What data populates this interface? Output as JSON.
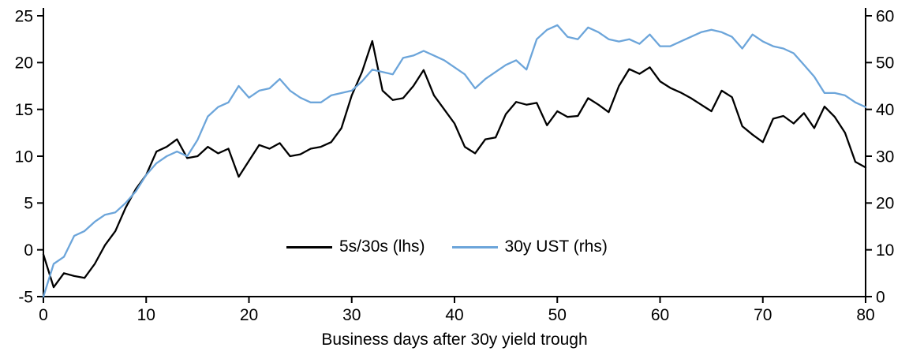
{
  "chart_data": {
    "type": "line",
    "xlabel": "Business days after 30y yield trough",
    "x_ticks": [
      0,
      10,
      20,
      30,
      40,
      50,
      60,
      70,
      80
    ],
    "left_axis": {
      "min": -5,
      "max": 25,
      "ticks": [
        -5,
        0,
        5,
        10,
        15,
        20,
        25
      ]
    },
    "right_axis": {
      "min": 0,
      "max": 60,
      "ticks": [
        0,
        10,
        20,
        30,
        40,
        50,
        60
      ]
    },
    "grid": false,
    "legend_position": "inside-center-bottom",
    "x": [
      0,
      1,
      2,
      3,
      4,
      5,
      6,
      7,
      8,
      9,
      10,
      11,
      12,
      13,
      14,
      15,
      16,
      17,
      18,
      19,
      20,
      21,
      22,
      23,
      24,
      25,
      26,
      27,
      28,
      29,
      30,
      31,
      32,
      33,
      34,
      35,
      36,
      37,
      38,
      39,
      40,
      41,
      42,
      43,
      44,
      45,
      46,
      47,
      48,
      49,
      50,
      51,
      52,
      53,
      54,
      55,
      56,
      57,
      58,
      59,
      60,
      61,
      62,
      63,
      64,
      65,
      66,
      67,
      68,
      69,
      70,
      71,
      72,
      73,
      74,
      75,
      76,
      77,
      78,
      79,
      80
    ],
    "series": [
      {
        "name": "5s/30s (lhs)",
        "axis": "left",
        "color": "#000000",
        "values": [
          -0.5,
          -4,
          -2.5,
          -2.8,
          -3,
          -1.5,
          0.5,
          2,
          4.5,
          6.5,
          8,
          10.5,
          11,
          11.8,
          9.8,
          10,
          11,
          10.3,
          10.8,
          7.8,
          9.5,
          11.2,
          10.8,
          11.4,
          10,
          10.2,
          10.8,
          11,
          11.5,
          13,
          16.5,
          19,
          22.3,
          17,
          16,
          16.2,
          17.5,
          19.2,
          16.5,
          15,
          13.5,
          11,
          10.3,
          11.8,
          12,
          14.5,
          15.8,
          15.5,
          15.7,
          13.3,
          14.8,
          14.2,
          14.3,
          16.2,
          15.5,
          14.7,
          17.5,
          19.3,
          18.8,
          19.5,
          18,
          17.3,
          16.8,
          16.2,
          15.5,
          14.8,
          17,
          16.3,
          13.2,
          12.3,
          11.5,
          14,
          14.3,
          13.5,
          14.6,
          13,
          15.3,
          14.2,
          12.5,
          9.4,
          8.8
        ]
      },
      {
        "name": "30y UST (rhs)",
        "axis": "right",
        "color": "#6CA5DA",
        "values": [
          0,
          7,
          8.5,
          13,
          14,
          16,
          17.5,
          18,
          20,
          22.5,
          26,
          28.5,
          30,
          31,
          30,
          33.5,
          38.5,
          40.5,
          41.5,
          45,
          42.5,
          44,
          44.5,
          46.5,
          44,
          42.5,
          41.5,
          41.5,
          43,
          43.5,
          44,
          46,
          48.5,
          48,
          47.5,
          51,
          51.5,
          52.5,
          51.5,
          50.5,
          49,
          47.5,
          44.5,
          46.5,
          48,
          49.5,
          50.5,
          48.5,
          55,
          57,
          58,
          55.5,
          55,
          57.5,
          56.5,
          55,
          54.5,
          55,
          54,
          56,
          53.5,
          53.5,
          54.5,
          55.5,
          56.5,
          57,
          56.5,
          55.5,
          53,
          56,
          54.5,
          53.5,
          53,
          52,
          49.5,
          47,
          43.5,
          43.5,
          43,
          41.5,
          40.5
        ]
      }
    ]
  }
}
